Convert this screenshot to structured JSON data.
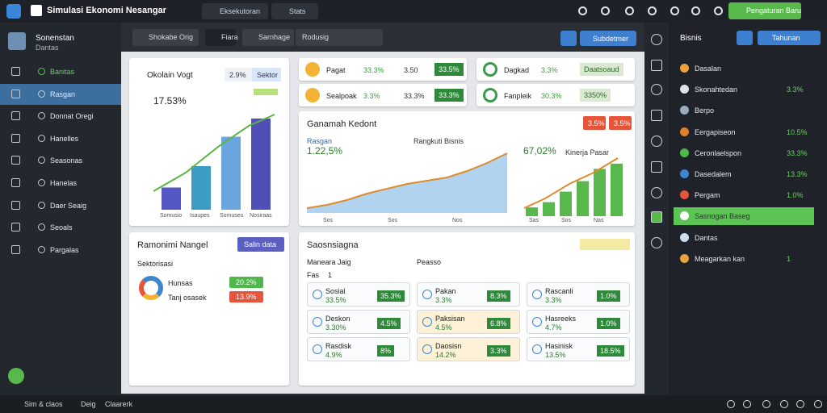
{
  "topbar": {
    "title": "Simulasi Ekonomi Nesangar",
    "tabs": [
      "Eksekutoran",
      "Stats"
    ],
    "button": "Pengaturan Baru"
  },
  "sidebar": {
    "title": "Sonenstan",
    "subtitle": "Dantas",
    "items": [
      "Banitas",
      "Rasgan",
      "Donnat Oregi",
      "Hanelles",
      "Seasonas",
      "Hanelas",
      "Daer Seaig",
      "Seoals",
      "Pargalas"
    ]
  },
  "toolbar": {
    "tabs": [
      "Shokabe Orig",
      "Fiara",
      "Sarnhage",
      "Rodusig"
    ],
    "button": "Subdetmer"
  },
  "growth": {
    "title": "Okolain Vogt",
    "chips": [
      "2.9%",
      "Sektor"
    ],
    "value": "17.53%",
    "chart_data": {
      "type": "bar",
      "categories": [
        "Somusio",
        "Isaupes",
        "Somuseo",
        "Nosiraas"
      ],
      "values": [
        28,
        55,
        92,
        115
      ],
      "ylim": [
        0,
        120
      ],
      "colors": [
        "#5458c4",
        "#3d9cc4",
        "#6aa5e0",
        "#4f4fb8"
      ]
    }
  },
  "kpis": [
    {
      "label": "Pagat",
      "value": "33.3%",
      "change": "3.50",
      "badge": "33.5%"
    },
    {
      "label": "Dagkad",
      "value": "3.3%",
      "change": "",
      "badge": "Daatsoaud"
    },
    {
      "label": "Sealpoak",
      "value": "3.3%",
      "change": "33.3%",
      "badge": "33.3%"
    },
    {
      "label": "Fanpleik",
      "value": "30.3%",
      "change": "",
      "badge": "3350%"
    }
  ],
  "market": {
    "title": "Ganamah Kedont",
    "buttons": [
      "3.5%",
      "3.5%"
    ],
    "left_label": "Rasgan",
    "left_value": "1.22,5%",
    "mid_label": "Rangkuti Bisnis",
    "right_value": "67,02%",
    "right_label": "Kinerja Pasar",
    "area": {
      "type": "area",
      "x_labels": [
        "Sos",
        "Sos",
        "Nos"
      ],
      "values": [
        6,
        10,
        16,
        24,
        30,
        36,
        40,
        44,
        52,
        62,
        74
      ],
      "ylim": [
        0,
        80
      ]
    },
    "bars": {
      "type": "bar",
      "x_labels": [
        "Sas",
        "Sos",
        "Nas"
      ],
      "values": [
        10,
        16,
        28,
        40,
        54,
        60
      ],
      "ylim": [
        0,
        70
      ]
    }
  },
  "sectors": {
    "title": "Ramonimi Nangel",
    "button": "Salin data",
    "subtitle": "Sektorisasi",
    "items": [
      {
        "name": "Hunsas",
        "value": "20.2%"
      },
      {
        "name": "Tanj osasek",
        "value": "13.9%"
      }
    ]
  },
  "overview": {
    "title": "Saosnsiagna",
    "filter": "Maneara Jaig",
    "filter2": "Peasso",
    "sub": "Fas",
    "count": "1",
    "cards": [
      [
        "Sosial",
        "33.5%",
        "35.3%"
      ],
      [
        "Pakan",
        "3.3%",
        "8.3%"
      ],
      [
        "Rascanli",
        "3.3%",
        "1.0%"
      ],
      [
        "Deskon",
        "3.30%",
        "4.5%"
      ],
      [
        "Paksisan",
        "4.5%",
        "6.8%"
      ],
      [
        "Hasreeks",
        "4.7%",
        "1.0%"
      ],
      [
        "Rasdisk",
        "4.9%",
        "8%"
      ],
      [
        "Daosisn",
        "14.2%",
        "3.3%"
      ],
      [
        "Hasinisk",
        "13.5%",
        "18.5%"
      ]
    ]
  },
  "right": {
    "title": "Bisnis",
    "button": "Tahunan",
    "items": [
      {
        "name": "Dasalan",
        "value": ""
      },
      {
        "name": "Skonahtedan",
        "value": "3.3%"
      },
      {
        "name": "Berpo",
        "value": ""
      },
      {
        "name": "Eergapiseon",
        "value": "10.5%"
      },
      {
        "name": "Ceronlaelspon",
        "value": "33.3%"
      },
      {
        "name": "Dasedalem",
        "value": "13.3%"
      },
      {
        "name": "Pergam",
        "value": "1.0%"
      },
      {
        "name": "Sasnogan Baseg",
        "value": ""
      },
      {
        "name": "Dantas",
        "value": ""
      },
      {
        "name": "Meagarkan kan",
        "value": "1"
      }
    ]
  },
  "bottom": {
    "items": [
      "Sim & claos",
      "Deig",
      "Claarerk"
    ]
  }
}
